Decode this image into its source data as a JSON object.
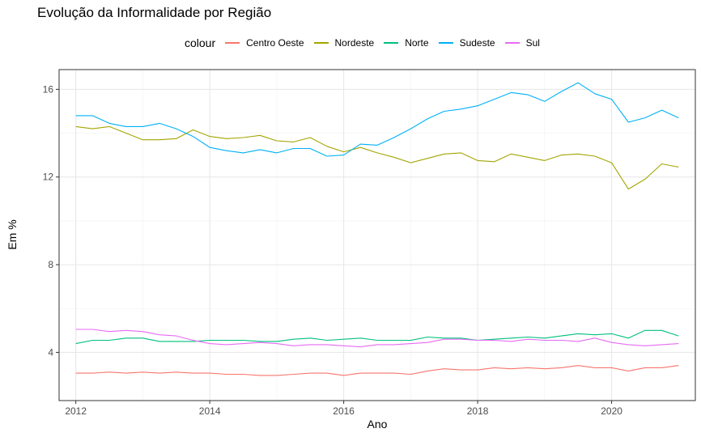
{
  "chart_data": {
    "type": "line",
    "title": "Evolução da Informalidade por Região",
    "xlabel": "Ano",
    "ylabel": "Em %",
    "legend_title": "colour",
    "legend_position": "top",
    "grid": true,
    "xlim": [
      2011.75,
      2021.25
    ],
    "ylim": [
      1.8,
      16.9
    ],
    "x_ticks": [
      2012,
      2014,
      2016,
      2018,
      2020
    ],
    "y_ticks": [
      4,
      8,
      12,
      16
    ],
    "x": [
      2012,
      2012.25,
      2012.5,
      2012.75,
      2013,
      2013.25,
      2013.5,
      2013.75,
      2014,
      2014.25,
      2014.5,
      2014.75,
      2015,
      2015.25,
      2015.5,
      2015.75,
      2016,
      2016.25,
      2016.5,
      2016.75,
      2017,
      2017.25,
      2017.5,
      2017.75,
      2018,
      2018.25,
      2018.5,
      2018.75,
      2019,
      2019.25,
      2019.5,
      2019.75,
      2020,
      2020.25,
      2020.5,
      2020.75,
      2021
    ],
    "series": [
      {
        "name": "Centro Oeste",
        "color": "#F8766D",
        "values": [
          3.05,
          3.05,
          3.1,
          3.05,
          3.1,
          3.05,
          3.1,
          3.05,
          3.05,
          3.0,
          3.0,
          2.95,
          2.95,
          3.0,
          3.05,
          3.05,
          2.95,
          3.05,
          3.05,
          3.05,
          3.0,
          3.15,
          3.25,
          3.2,
          3.2,
          3.3,
          3.25,
          3.3,
          3.25,
          3.3,
          3.4,
          3.3,
          3.3,
          3.15,
          3.3,
          3.3,
          3.4
        ]
      },
      {
        "name": "Nordeste",
        "color": "#A3A500",
        "values": [
          14.3,
          14.2,
          14.3,
          14.0,
          13.7,
          13.7,
          13.75,
          14.15,
          13.85,
          13.75,
          13.8,
          13.9,
          13.65,
          13.6,
          13.8,
          13.4,
          13.15,
          13.35,
          13.1,
          12.9,
          12.65,
          12.85,
          13.05,
          13.1,
          12.75,
          12.7,
          13.05,
          12.9,
          12.75,
          13.0,
          13.05,
          12.95,
          12.65,
          11.45,
          11.9,
          12.6,
          12.45
        ]
      },
      {
        "name": "Norte",
        "color": "#00BF7D",
        "values": [
          4.4,
          4.55,
          4.55,
          4.65,
          4.65,
          4.5,
          4.5,
          4.5,
          4.55,
          4.55,
          4.55,
          4.5,
          4.5,
          4.6,
          4.65,
          4.55,
          4.6,
          4.65,
          4.55,
          4.55,
          4.55,
          4.7,
          4.65,
          4.65,
          4.55,
          4.6,
          4.65,
          4.7,
          4.65,
          4.75,
          4.85,
          4.8,
          4.85,
          4.65,
          5.0,
          5.0,
          4.75
        ]
      },
      {
        "name": "Sudeste",
        "color": "#00B0F6",
        "values": [
          14.8,
          14.8,
          14.45,
          14.3,
          14.3,
          14.45,
          14.2,
          13.85,
          13.35,
          13.2,
          13.1,
          13.25,
          13.1,
          13.3,
          13.3,
          12.95,
          13.0,
          13.5,
          13.45,
          13.8,
          14.2,
          14.65,
          15.0,
          15.1,
          15.25,
          15.55,
          15.85,
          15.75,
          15.45,
          15.9,
          16.3,
          15.8,
          15.55,
          14.5,
          14.7,
          15.05,
          14.7
        ]
      },
      {
        "name": "Sul",
        "color": "#E76BF3",
        "values": [
          5.05,
          5.05,
          4.95,
          5.0,
          4.95,
          4.8,
          4.75,
          4.55,
          4.4,
          4.35,
          4.4,
          4.45,
          4.4,
          4.3,
          4.35,
          4.35,
          4.3,
          4.25,
          4.35,
          4.35,
          4.4,
          4.45,
          4.6,
          4.6,
          4.55,
          4.55,
          4.5,
          4.6,
          4.55,
          4.55,
          4.5,
          4.65,
          4.45,
          4.35,
          4.3,
          4.35,
          4.4
        ]
      }
    ]
  }
}
